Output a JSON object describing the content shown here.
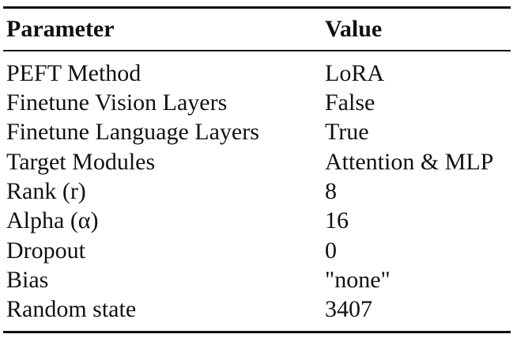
{
  "table": {
    "headers": {
      "parameter": "Parameter",
      "value": "Value"
    },
    "rows": [
      {
        "parameter": "PEFT Method",
        "value": "LoRA"
      },
      {
        "parameter": "Finetune Vision Layers",
        "value": "False"
      },
      {
        "parameter": "Finetune Language Layers",
        "value": "True"
      },
      {
        "parameter": "Target Modules",
        "value": "Attention & MLP"
      },
      {
        "parameter": "Rank (r)",
        "value": "8"
      },
      {
        "parameter": "Alpha (α)",
        "value": "16"
      },
      {
        "parameter": "Dropout",
        "value": "0"
      },
      {
        "parameter": "Bias",
        "value": "\"none\""
      },
      {
        "parameter": "Random state",
        "value": "3407"
      }
    ]
  }
}
